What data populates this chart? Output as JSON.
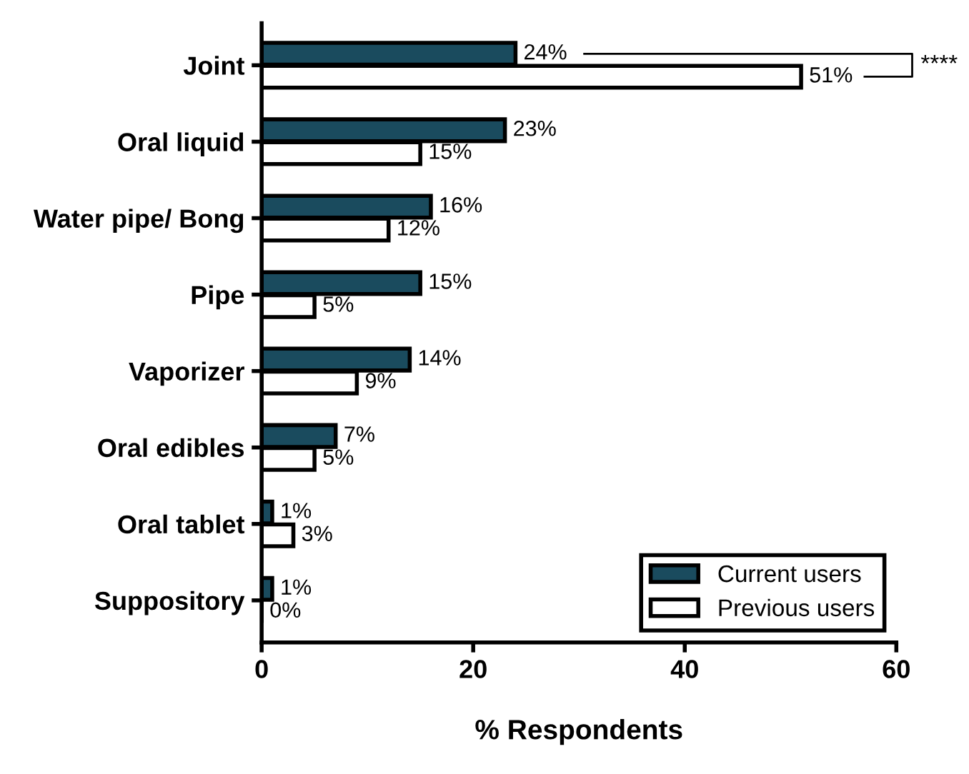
{
  "chart_data": {
    "type": "bar",
    "orientation": "horizontal",
    "xlabel": "% Respondents",
    "categories": [
      "Joint",
      "Oral liquid",
      "Water pipe/ Bong",
      "Pipe",
      "Vaporizer",
      "Oral edibles",
      "Oral tablet",
      "Suppository"
    ],
    "series": [
      {
        "name": "Current users",
        "color": "#1a4b5e",
        "values": [
          24,
          23,
          16,
          15,
          14,
          7,
          1,
          1
        ],
        "value_labels": [
          "24%",
          "23%",
          "16%",
          "15%",
          "14%",
          "7%",
          "1%",
          "1%"
        ]
      },
      {
        "name": "Previous users",
        "color": "#ffffff",
        "values": [
          51,
          15,
          12,
          5,
          9,
          5,
          3,
          0
        ],
        "value_labels": [
          "51%",
          "15%",
          "12%",
          "5%",
          "9%",
          "5%",
          "3%",
          "0%"
        ]
      }
    ],
    "xlim": [
      0,
      60
    ],
    "xticks": [
      0,
      20,
      40,
      60
    ],
    "grid": false,
    "legend": "bottom right",
    "annotations": [
      "****"
    ]
  }
}
